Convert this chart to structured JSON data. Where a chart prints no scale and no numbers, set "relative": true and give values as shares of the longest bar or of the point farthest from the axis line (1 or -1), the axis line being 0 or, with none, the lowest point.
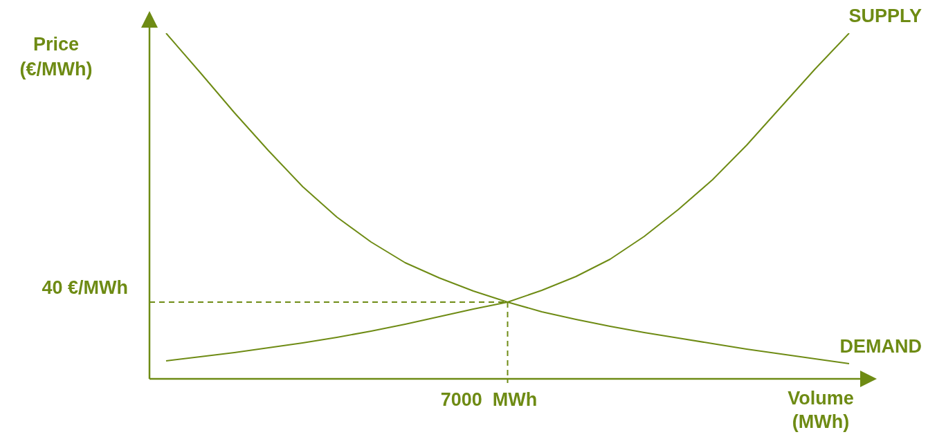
{
  "chart_data": {
    "type": "line",
    "relative": true,
    "xlabel": "Volume (MWh)",
    "ylabel": "Price (€/MWh)",
    "grid": false,
    "legend": false,
    "marker": "none",
    "line_style": "solid",
    "categories": [
      null,
      null,
      null,
      null,
      null,
      null,
      null,
      null,
      null,
      null,
      null,
      null,
      null,
      null,
      null,
      null,
      null,
      null,
      null,
      null,
      null
    ],
    "series": [
      {
        "name": "DEMAND",
        "color": "#6e8b14",
        "values": [
          1,
          0.886,
          0.77,
          0.66,
          0.556,
          0.468,
          0.396,
          0.336,
          0.292,
          0.254,
          0.222,
          0.194,
          0.172,
          0.152,
          0.134,
          0.118,
          0.102,
          0.086,
          0.072,
          0.058,
          0.044
        ]
      },
      {
        "name": "SUPPLY",
        "color": "#6e8b14",
        "values": [
          0.052,
          0.064,
          0.076,
          0.09,
          0.104,
          0.12,
          0.138,
          0.158,
          0.18,
          0.202,
          0.222,
          0.256,
          0.296,
          0.346,
          0.412,
          0.49,
          0.576,
          0.676,
          0.786,
          0.896,
          1
        ]
      }
    ],
    "ref_lines": [
      {
        "axis": "y",
        "value": 0.222,
        "label": "40 €/MWh",
        "color": "#6e8b14",
        "line_style": "dashed"
      }
    ],
    "annotations": [
      "7000  MWh"
    ]
  }
}
